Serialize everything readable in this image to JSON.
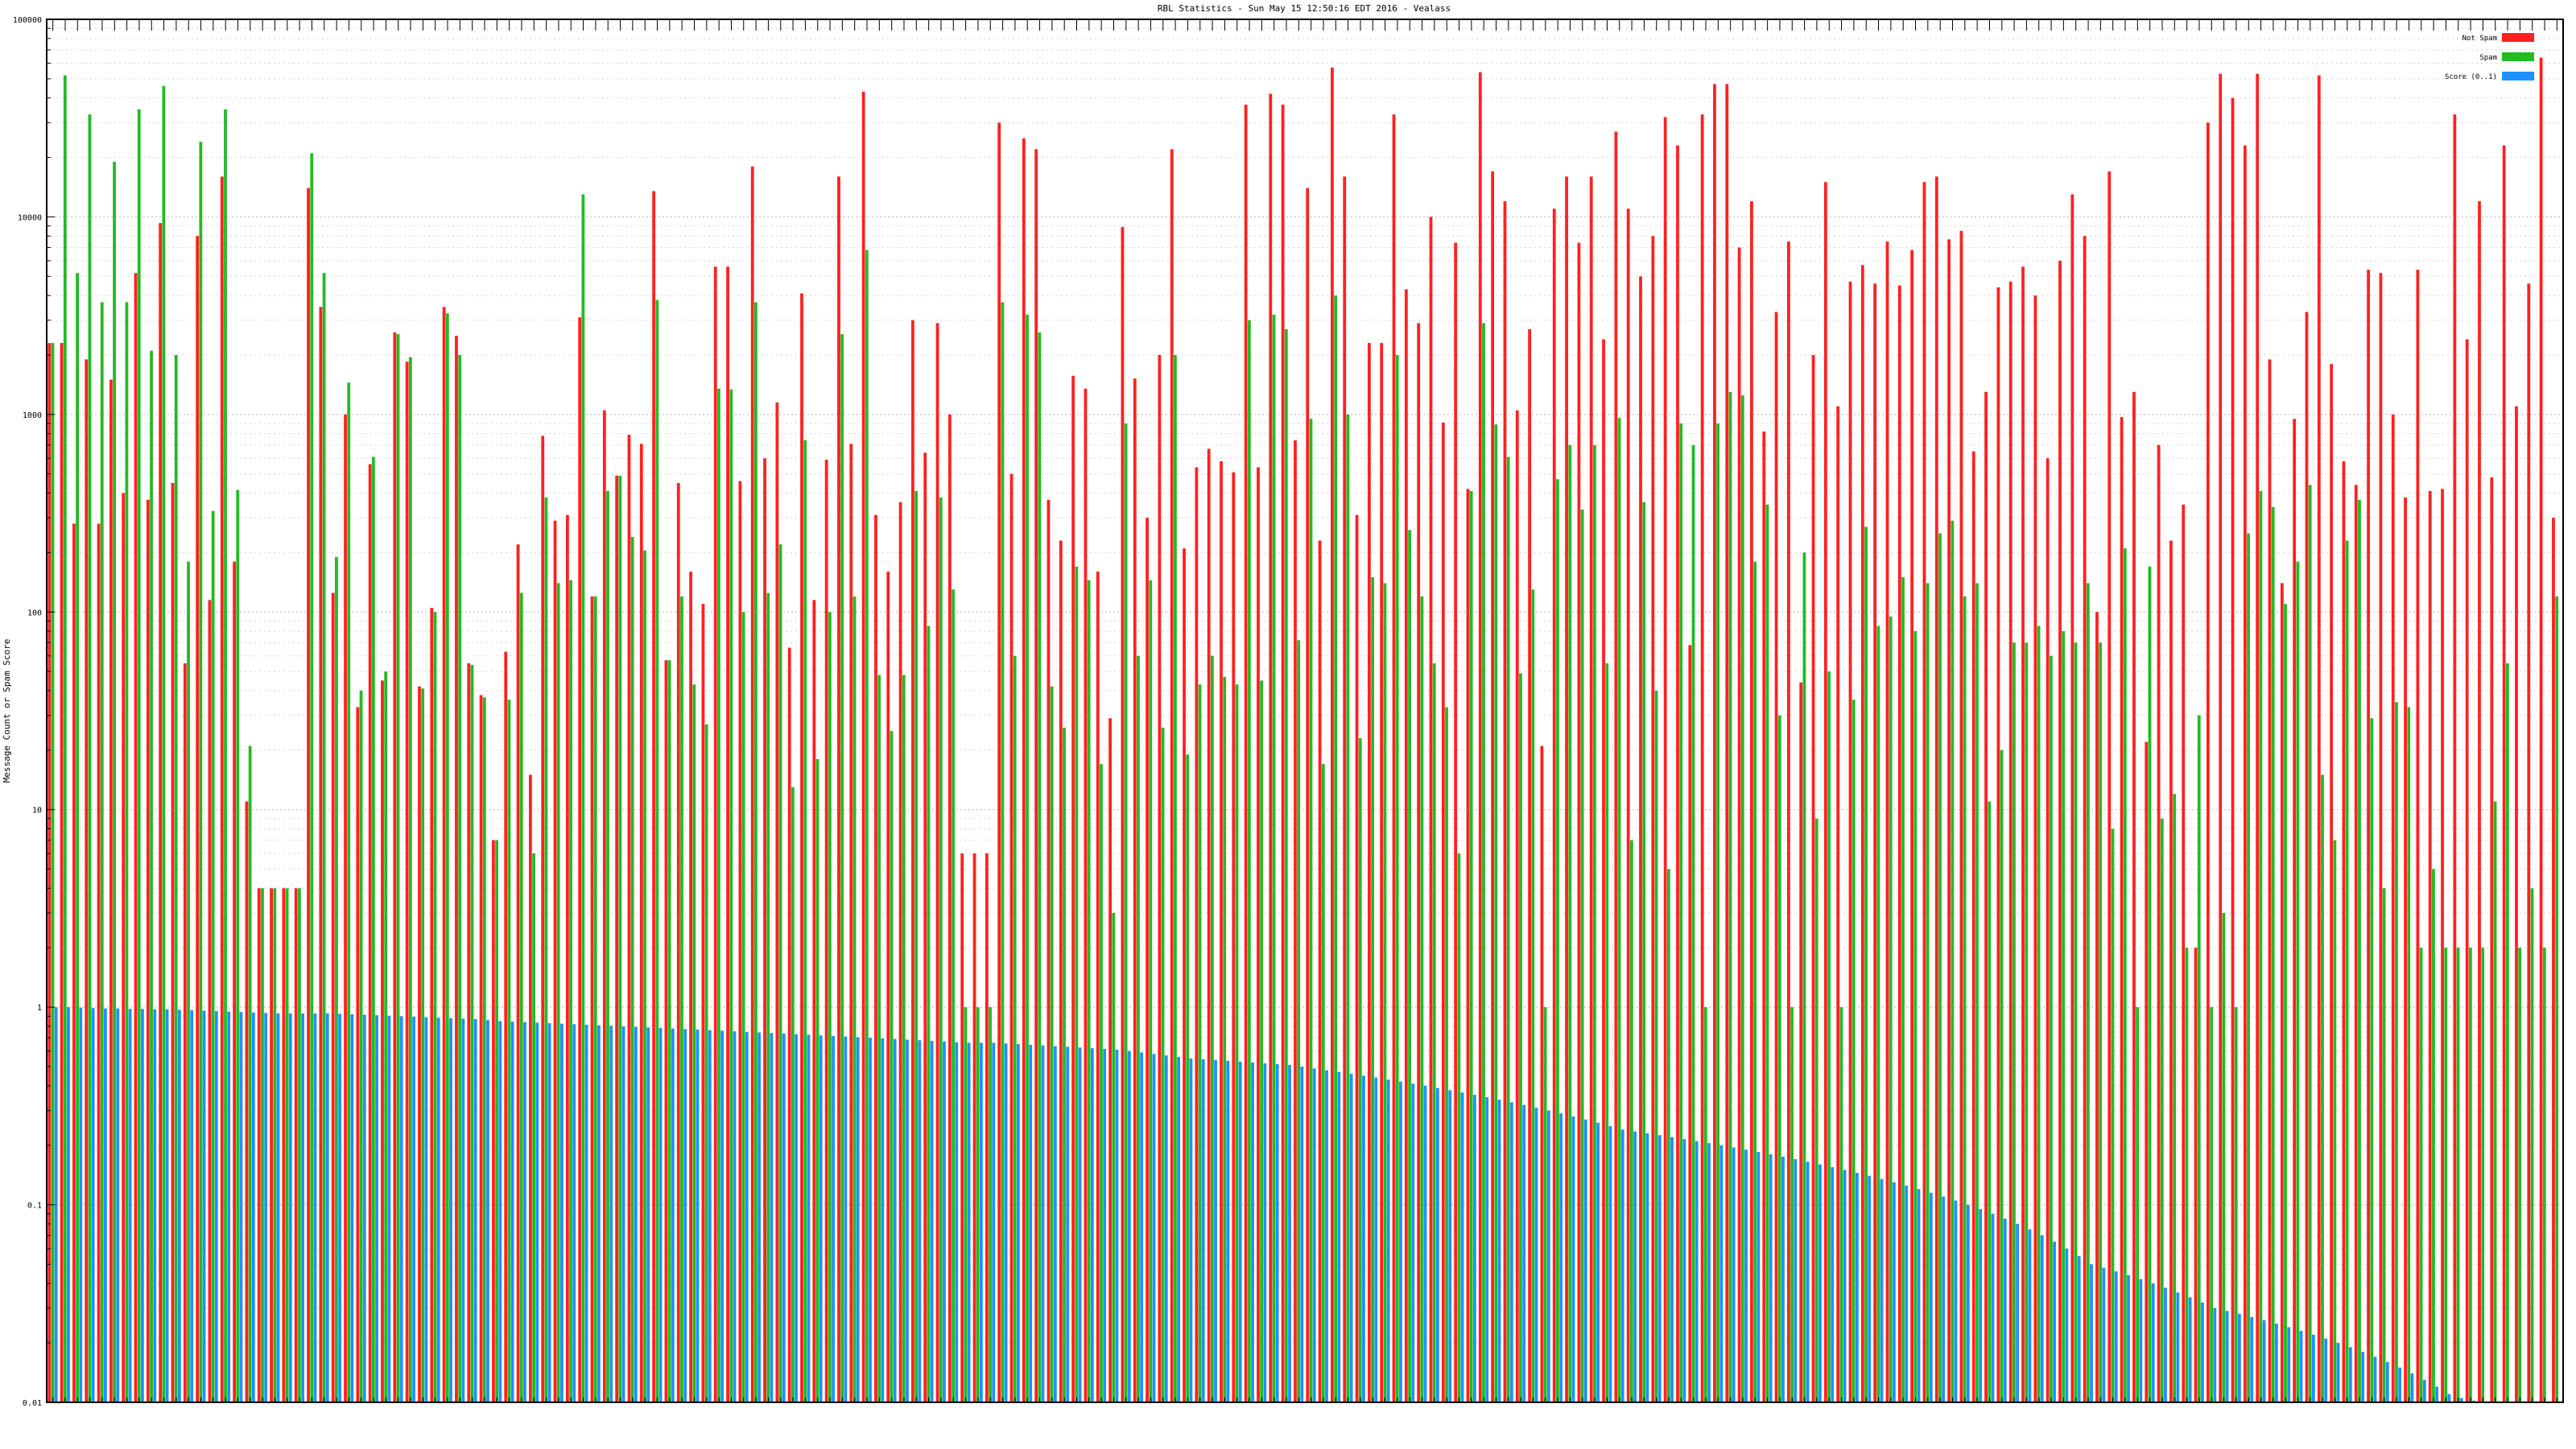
{
  "chart_data": {
    "type": "bar",
    "title": "RBL Statistics - Sun May 15 12:50:16 EDT 2016 - Vealass",
    "xlabel": "",
    "ylabel": "Message Count or Spam Score",
    "yscale": "log",
    "ylim": [
      0.01,
      100000
    ],
    "ytick_labels": [
      "0.01",
      "0.1",
      "1",
      "10",
      "100",
      "1000",
      "10000",
      "100000"
    ],
    "grid": true,
    "legend_position": "top-right",
    "colors": {
      "not_spam": "#ff2020",
      "spam": "#22bb22",
      "score": "#1e90ff"
    },
    "series": [
      {
        "name": "Not Spam",
        "values": [
          2300,
          2300,
          280,
          1900,
          280,
          1500,
          400,
          5200,
          370,
          9300,
          450,
          55,
          8000,
          115,
          16000,
          180,
          11,
          4,
          4,
          4,
          4,
          14000,
          3500,
          125,
          1000,
          33,
          560,
          45,
          2600,
          1850,
          42,
          105,
          3500,
          2500,
          55,
          38,
          7,
          63,
          220,
          15,
          780,
          290,
          310,
          3100,
          120,
          1050,
          490,
          790,
          710,
          13500,
          57,
          450,
          160,
          110,
          5600,
          5600,
          460,
          18000,
          600,
          1150,
          66,
          4100,
          115,
          590,
          16000,
          710,
          43000,
          310,
          160,
          360,
          3000,
          640,
          2900,
          1000,
          6,
          6,
          6,
          30000,
          500,
          25000,
          22000,
          370,
          230,
          1570,
          1350,
          160,
          29,
          8900,
          1520,
          300,
          2000,
          22000,
          210,
          540,
          670,
          580,
          510,
          37000,
          540,
          42000,
          37000,
          740,
          14000,
          230,
          57000,
          16000,
          310,
          2300,
          2300,
          33000,
          4300,
          2900,
          10000,
          910,
          7400,
          420,
          54000,
          17000,
          12000,
          1050,
          2700,
          21,
          11000,
          16000,
          7400,
          16000,
          2400,
          27000,
          11000,
          5000,
          8000,
          32000,
          23000,
          68,
          33000,
          47000,
          47000,
          7000,
          12000,
          820,
          3300,
          7500,
          44,
          2000,
          15000,
          1100,
          4700,
          5700,
          4600,
          7500,
          4500,
          6800,
          15000,
          16000,
          7700,
          8500,
          650,
          1300,
          4400,
          4700,
          5600,
          4000,
          600,
          6000,
          13000,
          8000,
          100,
          17000,
          970,
          1300,
          22,
          700,
          230,
          350,
          2,
          30000,
          53000,
          40000,
          23000,
          53000,
          1900,
          140,
          950,
          3300,
          52000,
          1800,
          580,
          440,
          5400,
          5200,
          1000,
          380,
          5400,
          410,
          420,
          33000,
          2400,
          12000,
          480,
          23000,
          1100,
          4600,
          64000,
          300
        ]
      },
      {
        "name": "Spam",
        "values": [
          2300,
          52000,
          5200,
          33000,
          3700,
          19000,
          3700,
          35000,
          2100,
          46000,
          2000,
          180,
          24000,
          325,
          35000,
          415,
          21,
          4,
          4,
          4,
          4,
          21000,
          5200,
          190,
          1450,
          40,
          610,
          50,
          2550,
          1950,
          41,
          100,
          3250,
          2000,
          54,
          37,
          7,
          36,
          125,
          6,
          380,
          140,
          145,
          13000,
          120,
          410,
          490,
          240,
          205,
          3800,
          57,
          120,
          43,
          27,
          1350,
          1340,
          100,
          3700,
          125,
          220,
          13,
          740,
          18,
          100,
          2550,
          120,
          6800,
          48,
          25,
          48,
          410,
          85,
          380,
          130,
          1,
          1,
          1,
          3700,
          60,
          3200,
          2600,
          42,
          26,
          170,
          145,
          17,
          3,
          900,
          60,
          145,
          26,
          2000,
          19,
          43,
          60,
          47,
          43,
          3000,
          45,
          3200,
          2700,
          72,
          950,
          17,
          4000,
          1000,
          23,
          150,
          140,
          2000,
          260,
          120,
          55,
          33,
          6,
          410,
          2900,
          890,
          610,
          49,
          130,
          1,
          470,
          700,
          330,
          700,
          55,
          960,
          7,
          360,
          40,
          5,
          900,
          700,
          1,
          900,
          1300,
          1250,
          180,
          350,
          30,
          1,
          200,
          9,
          50,
          1,
          36,
          270,
          85,
          95,
          150,
          80,
          140,
          250,
          290,
          120,
          140,
          11,
          20,
          70,
          70,
          85,
          60,
          80,
          70,
          140,
          70,
          8,
          210,
          1,
          170,
          9,
          12,
          2,
          30,
          1,
          3,
          1,
          250,
          410,
          340,
          110,
          180,
          440,
          15,
          7,
          230,
          370,
          29,
          4,
          35,
          33,
          2,
          5,
          2,
          2,
          2,
          2,
          11,
          55,
          2,
          4,
          2,
          120
        ]
      },
      {
        "name": "Score (0..1)",
        "values": [
          1,
          1,
          0.995,
          0.99,
          0.985,
          0.985,
          0.98,
          0.98,
          0.975,
          0.975,
          0.97,
          0.965,
          0.96,
          0.955,
          0.95,
          0.945,
          0.94,
          0.935,
          0.93,
          0.93,
          0.93,
          0.93,
          0.93,
          0.925,
          0.92,
          0.915,
          0.91,
          0.905,
          0.9,
          0.895,
          0.89,
          0.885,
          0.88,
          0.875,
          0.87,
          0.86,
          0.85,
          0.845,
          0.84,
          0.835,
          0.83,
          0.825,
          0.82,
          0.815,
          0.81,
          0.805,
          0.8,
          0.795,
          0.79,
          0.785,
          0.78,
          0.775,
          0.77,
          0.765,
          0.76,
          0.755,
          0.75,
          0.745,
          0.74,
          0.735,
          0.73,
          0.725,
          0.72,
          0.715,
          0.71,
          0.705,
          0.7,
          0.695,
          0.69,
          0.685,
          0.68,
          0.675,
          0.67,
          0.665,
          0.66,
          0.66,
          0.66,
          0.655,
          0.65,
          0.645,
          0.64,
          0.635,
          0.63,
          0.625,
          0.62,
          0.615,
          0.61,
          0.6,
          0.59,
          0.58,
          0.57,
          0.56,
          0.55,
          0.545,
          0.54,
          0.535,
          0.53,
          0.525,
          0.52,
          0.515,
          0.51,
          0.5,
          0.49,
          0.48,
          0.47,
          0.46,
          0.45,
          0.44,
          0.43,
          0.42,
          0.41,
          0.4,
          0.39,
          0.38,
          0.37,
          0.36,
          0.35,
          0.34,
          0.33,
          0.32,
          0.31,
          0.3,
          0.29,
          0.28,
          0.27,
          0.26,
          0.25,
          0.24,
          0.235,
          0.23,
          0.225,
          0.22,
          0.215,
          0.21,
          0.205,
          0.2,
          0.195,
          0.19,
          0.185,
          0.18,
          0.175,
          0.17,
          0.165,
          0.16,
          0.155,
          0.15,
          0.145,
          0.14,
          0.135,
          0.13,
          0.125,
          0.12,
          0.115,
          0.11,
          0.105,
          0.1,
          0.095,
          0.09,
          0.085,
          0.08,
          0.075,
          0.07,
          0.065,
          0.06,
          0.055,
          0.05,
          0.048,
          0.046,
          0.044,
          0.042,
          0.04,
          0.038,
          0.036,
          0.034,
          0.032,
          0.03,
          0.029,
          0.028,
          0.027,
          0.026,
          0.025,
          0.024,
          0.023,
          0.022,
          0.021,
          0.02,
          0.019,
          0.018,
          0.017,
          0.016,
          0.015,
          0.014,
          0.013,
          0.012,
          0.011,
          0.0105,
          0.0102,
          0.0101,
          0.01,
          0.01,
          0.01,
          0.01,
          0.01,
          0.01,
          0.01,
          0.01
        ]
      }
    ]
  }
}
